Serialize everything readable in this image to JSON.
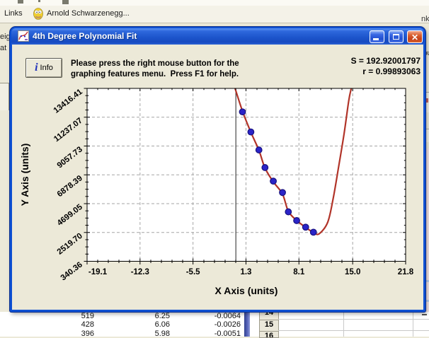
{
  "browser_bar": {
    "links_label": "Links",
    "favorite_title": "Arnold Schwarzenegg...",
    "clipped_right_text": "nk"
  },
  "background_app": {
    "clipped_left_text_1": "eig",
    "clipped_left_text_2": "at",
    "clipped_right_text": "pu",
    "table_rows": [
      [
        "519",
        "6.25",
        "-0.0064"
      ],
      [
        "428",
        "6.06",
        "-0.0026"
      ],
      [
        "396",
        "5.98",
        "-0.0051"
      ]
    ],
    "row_numbers": [
      "14",
      "15",
      "16"
    ]
  },
  "dialog": {
    "title": "4th Degree Polynomial Fit",
    "info_button_label": "Info",
    "message_line1": "Please press the right mouse button for the",
    "message_line2": "graphing features menu.  Press F1 for help.",
    "stat_s": "S = 192.92001797",
    "stat_r": "r = 0.99893063"
  },
  "chart_data": {
    "type": "scatter",
    "title": "4th Degree Polynomial Fit",
    "xlabel": "X Axis (units)",
    "ylabel": "Y Axis (units)",
    "xlim": [
      -19.1,
      21.8
    ],
    "ylim": [
      340.36,
      13416.41
    ],
    "x_tick_labels": [
      "-19.1",
      "-12.3",
      "-5.5",
      "1.3",
      "8.1",
      "15.0",
      "21.8"
    ],
    "y_tick_labels": [
      "340.36",
      "2519.70",
      "4699.05",
      "6878.39",
      "9057.73",
      "11237.07",
      "13416.41"
    ],
    "grid": "dashed",
    "zero_line_x": 0,
    "legend": "none",
    "points": [
      [
        0.85,
        11640
      ],
      [
        1.93,
        10120
      ],
      [
        2.96,
        8760
      ],
      [
        3.74,
        7430
      ],
      [
        4.81,
        6400
      ],
      [
        5.99,
        5540
      ],
      [
        6.74,
        4080
      ],
      [
        7.81,
        3420
      ],
      [
        8.96,
        2920
      ],
      [
        9.96,
        2540
      ]
    ],
    "fit_curve": {
      "degree": 4,
      "S": 192.92001797,
      "r": 0.99893063,
      "visible_curve_anchors": [
        [
          -0.1,
          13416.41
        ],
        [
          0.85,
          11700
        ],
        [
          1.93,
          10100
        ],
        [
          2.96,
          8740
        ],
        [
          3.74,
          7400
        ],
        [
          4.81,
          6350
        ],
        [
          5.99,
          5430
        ],
        [
          6.74,
          4120
        ],
        [
          7.81,
          3430
        ],
        [
          8.96,
          2900
        ],
        [
          9.96,
          2520
        ],
        [
          10.7,
          2420
        ],
        [
          11.8,
          3300
        ],
        [
          12.5,
          5100
        ],
        [
          13.2,
          7500
        ],
        [
          13.9,
          10000
        ],
        [
          14.5,
          12500
        ],
        [
          14.82,
          13416.41
        ]
      ]
    },
    "colors": {
      "curve": "#b13429",
      "point_fill": "#2b24c8",
      "point_stroke": "#18127f",
      "grid": "#a6a6a6",
      "axis": "#000000",
      "plot_bg": "#ffffff"
    }
  }
}
